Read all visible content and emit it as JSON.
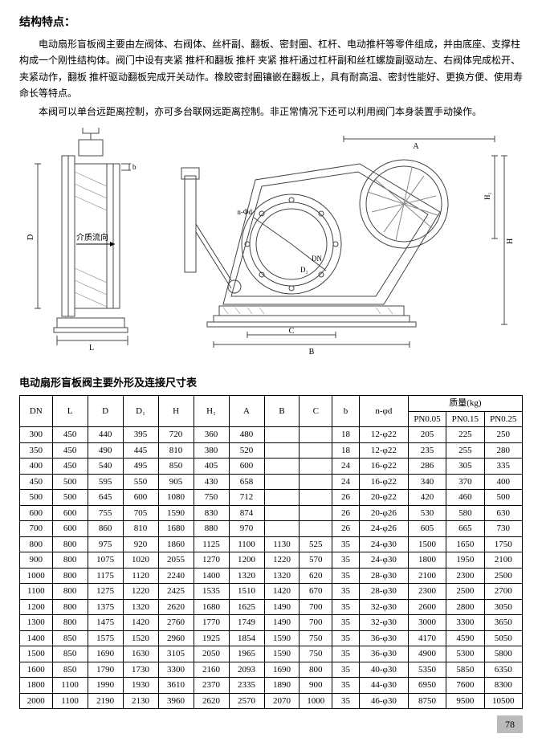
{
  "title_struct": "结构特点：",
  "paragraphs": [
    "电动扇形盲板阀主要由左阀体、右阀体、丝杆副、翻板、密封圈、杠杆、电动推杆等零件组成，并由底座、支撑柱构成一个刚性结构体。阀门中设有夹紧 推杆和翻板 推杆 夹紧 推杆通过杠杆副和丝杠螺旋副驱动左、右阀体完成松开、夹紧动作，翻板 推杆驱动翻板完成开关动作。橡胶密封圈镶嵌在翻板上，具有耐高温、密封性能好、更换方便、使用寿命长等特点。",
    "本阀可以单台远距离控制，亦可多台联网远距离控制。非正常情况下还可以利用阀门本身装置手动操作。"
  ],
  "diagram_labels": {
    "A": "A",
    "B": "B",
    "C": "C",
    "D": "D",
    "H": "H",
    "H1": "H₁",
    "L": "L",
    "b": "b",
    "n_phi_d": "n-Φd",
    "DN": "DN",
    "D1": "D₁",
    "flow": "介质流向"
  },
  "table_title": "电动扇形盲板阀主要外形及连接尺寸表",
  "columns_main": [
    "DN",
    "L",
    "D",
    "D₁",
    "H",
    "H₁",
    "A",
    "B",
    "C",
    "b",
    "n-φd"
  ],
  "mass_header": "质量(kg)",
  "mass_cols": [
    "PN0.05",
    "PN0.15",
    "PN0.25"
  ],
  "rows": [
    [
      "300",
      "450",
      "440",
      "395",
      "720",
      "360",
      "480",
      "",
      "",
      "18",
      "12-φ22",
      "205",
      "225",
      "250"
    ],
    [
      "350",
      "450",
      "490",
      "445",
      "810",
      "380",
      "520",
      "",
      "",
      "18",
      "12-φ22",
      "235",
      "255",
      "280"
    ],
    [
      "400",
      "450",
      "540",
      "495",
      "850",
      "405",
      "600",
      "",
      "",
      "24",
      "16-φ22",
      "286",
      "305",
      "335"
    ],
    [
      "450",
      "500",
      "595",
      "550",
      "905",
      "430",
      "658",
      "",
      "",
      "24",
      "16-φ22",
      "340",
      "370",
      "400"
    ],
    [
      "500",
      "500",
      "645",
      "600",
      "1080",
      "750",
      "712",
      "",
      "",
      "26",
      "20-φ22",
      "420",
      "460",
      "500"
    ],
    [
      "600",
      "600",
      "755",
      "705",
      "1590",
      "830",
      "874",
      "",
      "",
      "26",
      "20-φ26",
      "530",
      "580",
      "630"
    ],
    [
      "700",
      "600",
      "860",
      "810",
      "1680",
      "880",
      "970",
      "",
      "",
      "26",
      "24-φ26",
      "605",
      "665",
      "730"
    ],
    [
      "800",
      "800",
      "975",
      "920",
      "1860",
      "1125",
      "1100",
      "1130",
      "525",
      "35",
      "24-φ30",
      "1500",
      "1650",
      "1750"
    ],
    [
      "900",
      "800",
      "1075",
      "1020",
      "2055",
      "1270",
      "1200",
      "1220",
      "570",
      "35",
      "24-φ30",
      "1800",
      "1950",
      "2100"
    ],
    [
      "1000",
      "800",
      "1175",
      "1120",
      "2240",
      "1400",
      "1320",
      "1320",
      "620",
      "35",
      "28-φ30",
      "2100",
      "2300",
      "2500"
    ],
    [
      "1100",
      "800",
      "1275",
      "1220",
      "2425",
      "1535",
      "1510",
      "1420",
      "670",
      "35",
      "28-φ30",
      "2300",
      "2500",
      "2700"
    ],
    [
      "1200",
      "800",
      "1375",
      "1320",
      "2620",
      "1680",
      "1625",
      "1490",
      "700",
      "35",
      "32-φ30",
      "2600",
      "2800",
      "3050"
    ],
    [
      "1300",
      "800",
      "1475",
      "1420",
      "2760",
      "1770",
      "1749",
      "1490",
      "700",
      "35",
      "32-φ30",
      "3000",
      "3300",
      "3650"
    ],
    [
      "1400",
      "850",
      "1575",
      "1520",
      "2960",
      "1925",
      "1854",
      "1590",
      "750",
      "35",
      "36-φ30",
      "4170",
      "4590",
      "5050"
    ],
    [
      "1500",
      "850",
      "1690",
      "1630",
      "3105",
      "2050",
      "1965",
      "1590",
      "750",
      "35",
      "36-φ30",
      "4900",
      "5300",
      "5800"
    ],
    [
      "1600",
      "850",
      "1790",
      "1730",
      "3300",
      "2160",
      "2093",
      "1690",
      "800",
      "35",
      "40-φ30",
      "5350",
      "5850",
      "6350"
    ],
    [
      "1800",
      "1100",
      "1990",
      "1930",
      "3610",
      "2370",
      "2335",
      "1890",
      "900",
      "35",
      "44-φ30",
      "6950",
      "7600",
      "8300"
    ],
    [
      "2000",
      "1100",
      "2190",
      "2130",
      "3960",
      "2620",
      "2570",
      "2070",
      "1000",
      "35",
      "46-φ30",
      "8750",
      "9500",
      "10500"
    ]
  ],
  "page_number": "78",
  "colors": {
    "stroke": "#444444",
    "hatch": "#888888",
    "bg": "#ffffff",
    "pagenum_bg": "#bbbbbb"
  }
}
